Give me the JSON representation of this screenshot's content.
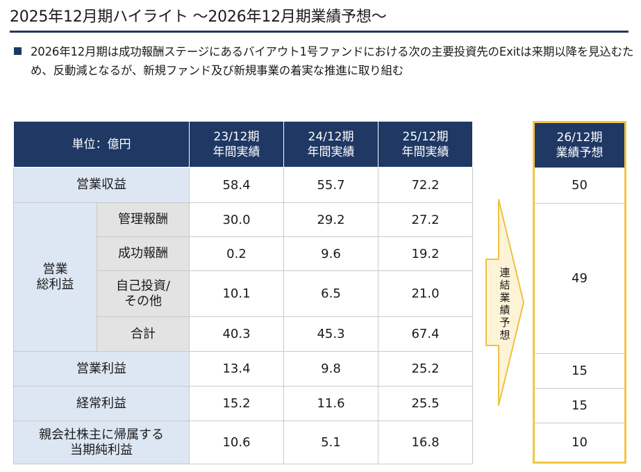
{
  "header": {
    "title": "2025年12月期ハイライト ～2026年12月期業績予想～"
  },
  "bullet": {
    "text": "2026年12月期は成功報酬ステージにあるバイアウト1号ファンドにおける次の主要投資先のExitは来期以降を見込むため、反動減となるが、新規ファンド及び新規事業の着実な推進に取り組む"
  },
  "colors": {
    "navy": "#1f3864",
    "label_bg": "#dde6f3",
    "sublabel_bg": "#e3e3e3",
    "forecast_border": "#f5c542",
    "arrow_fill": "#fdf3d6"
  },
  "table": {
    "unit": "単位：億円",
    "columns": [
      {
        "line1": "23/12期",
        "line2": "年間実績"
      },
      {
        "line1": "24/12期",
        "line2": "年間実績"
      },
      {
        "line1": "25/12期",
        "line2": "年間実績"
      }
    ],
    "rows": {
      "revenue": {
        "label": "営業収益",
        "values": [
          "58.4",
          "55.7",
          "72.2"
        ]
      },
      "gross_group_label": "営業\n総利益",
      "mgmt_fee": {
        "label": "管理報酬",
        "values": [
          "30.0",
          "29.2",
          "27.2"
        ]
      },
      "success_fee": {
        "label": "成功報酬",
        "values": [
          "0.2",
          "9.6",
          "19.2"
        ]
      },
      "own_invest": {
        "label": "自己投資/\nその他",
        "values": [
          "10.1",
          "6.5",
          "21.0"
        ]
      },
      "gross_total": {
        "label": "合計",
        "values": [
          "40.3",
          "45.3",
          "67.4"
        ]
      },
      "operating_income": {
        "label": "営業利益",
        "values": [
          "13.4",
          "9.8",
          "25.2"
        ]
      },
      "ordinary_income": {
        "label": "経常利益",
        "values": [
          "15.2",
          "11.6",
          "25.5"
        ]
      },
      "net_income": {
        "label": "親会社株主に帰属する\n当期純利益",
        "values": [
          "10.6",
          "5.1",
          "16.8"
        ]
      }
    }
  },
  "arrow": {
    "label": "連結業績予想"
  },
  "forecast": {
    "line1": "26/12期",
    "line2": "業績予想",
    "revenue": "50",
    "gross_profit": "49",
    "operating_income": "15",
    "ordinary_income": "15",
    "net_income": "10"
  }
}
